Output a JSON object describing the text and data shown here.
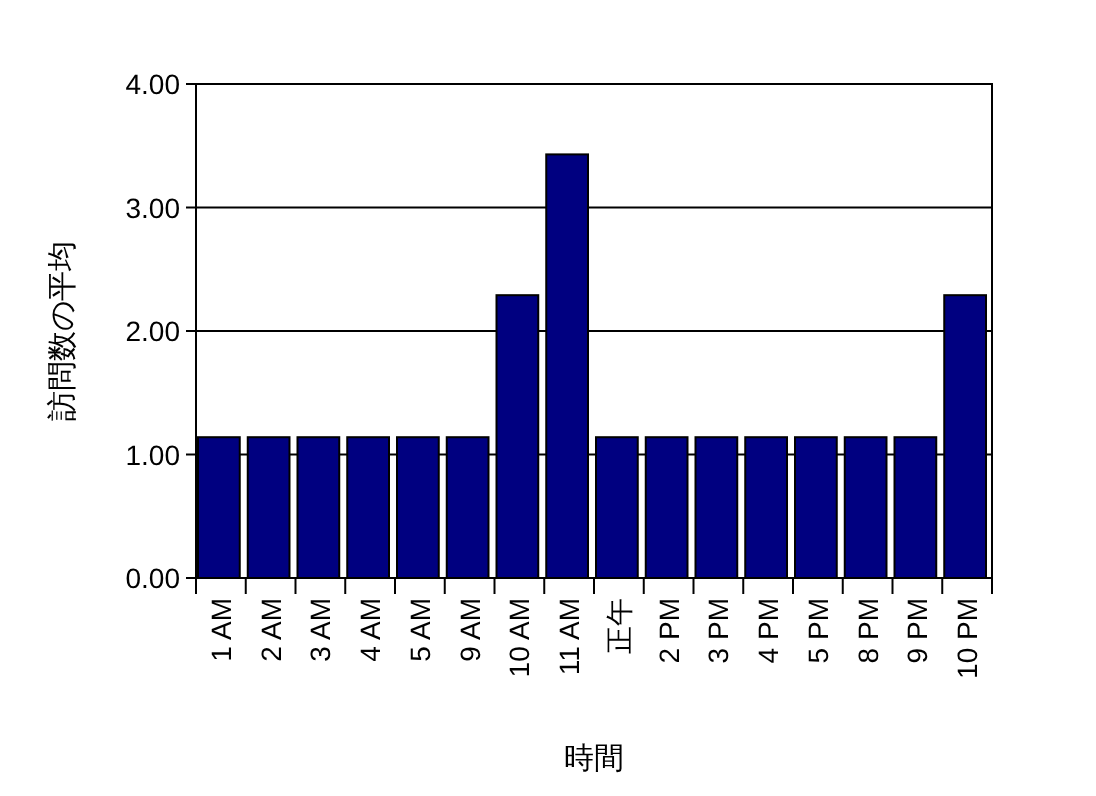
{
  "chart_data": {
    "type": "bar",
    "xlabel": "時間",
    "ylabel": "訪問数の平均",
    "categories": [
      "1 AM",
      "2 AM",
      "3 AM",
      "4 AM",
      "5 AM",
      "9 AM",
      "10 AM",
      "11 AM",
      "正午",
      "2 PM",
      "3 PM",
      "4 PM",
      "5 PM",
      "8 PM",
      "9 PM",
      "10 PM"
    ],
    "values": [
      1.14,
      1.14,
      1.14,
      1.14,
      1.14,
      1.14,
      2.29,
      3.43,
      1.14,
      1.14,
      1.14,
      1.14,
      1.14,
      1.14,
      1.14,
      2.29
    ],
    "color": "#000080",
    "ylim": [
      0,
      4
    ],
    "yticks": [
      {
        "value": 0,
        "label": "0.00"
      },
      {
        "value": 1,
        "label": "1.00"
      },
      {
        "value": 2,
        "label": "2.00"
      },
      {
        "value": 3,
        "label": "3.00"
      },
      {
        "value": 4,
        "label": "4.00"
      }
    ],
    "grid": "y"
  }
}
